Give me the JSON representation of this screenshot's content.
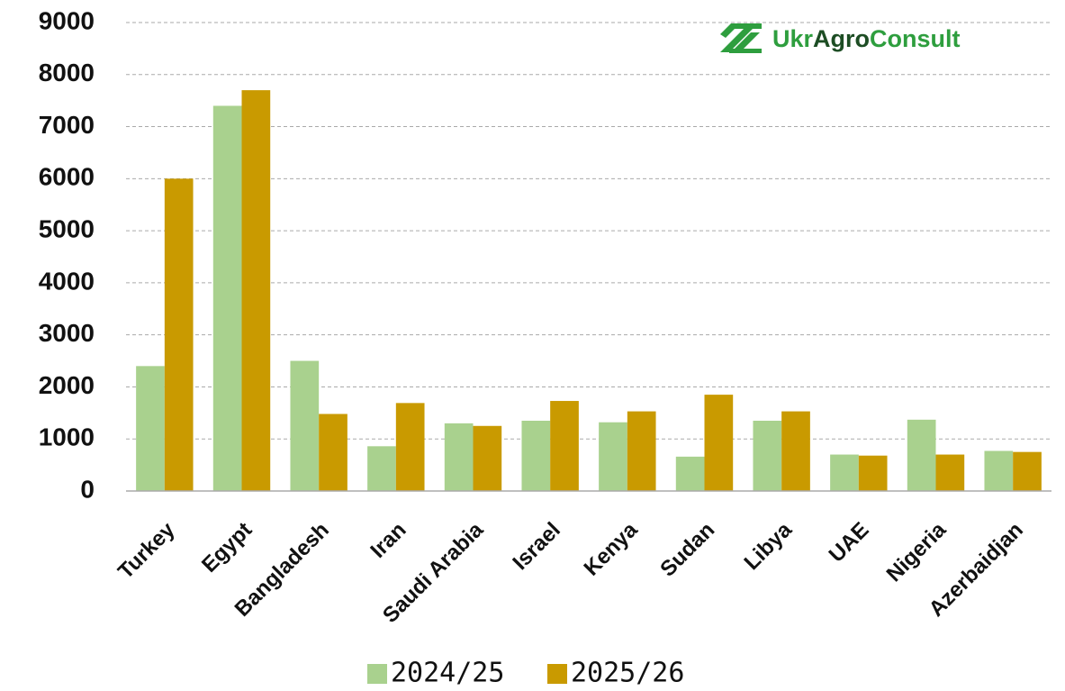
{
  "chart_data": {
    "type": "bar",
    "watermark": [
      "Ukr",
      "Agro",
      "Consult"
    ],
    "categories": [
      "Turkey",
      "Egypt",
      "Bangladesh",
      "Iran",
      "Saudi Arabia",
      "Israel",
      "Kenya",
      "Sudan",
      "Libya",
      "UAE",
      "Nigeria",
      "Azerbaidjan"
    ],
    "series": [
      {
        "name": "2024/25",
        "color": "#a9d18e",
        "values": [
          2400,
          7400,
          2500,
          860,
          1300,
          1350,
          1320,
          660,
          1350,
          700,
          1370,
          770
        ]
      },
      {
        "name": "2025/26",
        "color": "#c99a00",
        "values": [
          6000,
          7700,
          1480,
          1690,
          1250,
          1730,
          1530,
          1850,
          1530,
          680,
          700,
          750
        ]
      }
    ],
    "ylim": [
      0,
      9000
    ],
    "yticks": [
      0,
      1000,
      2000,
      3000,
      4000,
      5000,
      6000,
      7000,
      8000,
      9000
    ],
    "grid": true,
    "legend": "bottom"
  }
}
